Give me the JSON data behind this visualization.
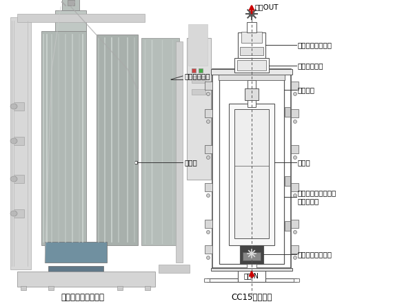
{
  "bg_color": "#ffffff",
  "title_left": "ロータ取り付け状態",
  "title_right": "CC15形構造図",
  "label_controller": "コントローラ",
  "label_rotor_left": "ロータ",
  "label_top_out": "上清OUT",
  "label_mechanical_seal_top": "メカニカルシール",
  "label_high_freq_rotor": "高周波ロータ",
  "label_shaft": "シャフト",
  "label_rotor_right": "ロータ",
  "label_water_jacket": "ウォータジャケット\n（冷却水）",
  "label_mechanical_seal_bottom": "メカニカルシール",
  "label_sample_in": "試料IN",
  "text_color": "#000000",
  "line_color": "#555555",
  "arrow_color": "#cc0000",
  "diagram_line_color": "#555555"
}
